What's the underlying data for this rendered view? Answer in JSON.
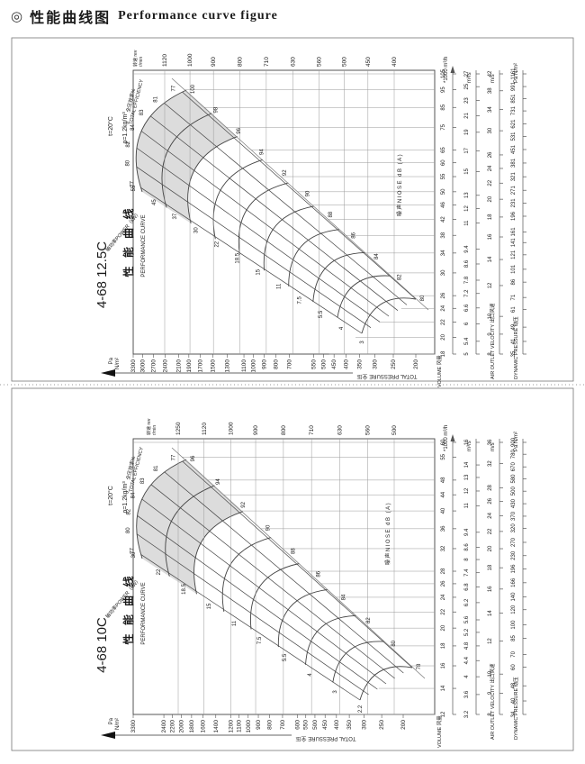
{
  "page": {
    "header_symbol": "◎",
    "header_zh": "性能曲线图",
    "header_en": "Performance curve figure"
  },
  "labels": {
    "rpm_header": "转速 rev r/min",
    "efficiency_axis_zh": "全压效率%",
    "efficiency_axis_en": "TOTAL EFFICIENCY",
    "noise_axis": "噪声NIOSE dB (A)",
    "power_axis": "轴功率POWER（kW）",
    "volume_axis": "VOLUME 风量",
    "outlet_axis": "AIR OUTLET VELOCITY 出口风速",
    "dynamic_axis": "DYNAMIC PRESSURE 动压",
    "total_pressure_axis": "TOTAL PRESSURE 全压",
    "pa_unit_line1": "Pa",
    "pa_unit_line2": "N/m²",
    "perf_title_zh": "性 能 曲 线",
    "perf_title_en": "PERFORMANCE CURVE",
    "condition_t": "t=20°C",
    "condition_rho": "ρ=1.2kg/m³",
    "col_headers": [
      "*1000 m³/h",
      "m³/s",
      "m/s",
      "Pa N/m²"
    ]
  },
  "chart_data": [
    {
      "type": "line",
      "title": "4-68 12.5C 性能曲线 PERFORMANCE CURVE",
      "model": "4-68 12.5C",
      "rpm": [
        1120,
        1000,
        900,
        800,
        710,
        630,
        560,
        500,
        450,
        400
      ],
      "volume_1000m3h": [
        105,
        95,
        85,
        75,
        65,
        60,
        55,
        50,
        46,
        42,
        38,
        34,
        30,
        26,
        24,
        22,
        20,
        18
      ],
      "flow_m3s": [
        27,
        25,
        23,
        21,
        19,
        17,
        15,
        13,
        12,
        11,
        9.4,
        8.6,
        7.8,
        7.2,
        6.6,
        6,
        5.4,
        5
      ],
      "outlet_velocity_ms": [
        42,
        38,
        34,
        30,
        26,
        24,
        22,
        20,
        18,
        16,
        14,
        12,
        10,
        9,
        8
      ],
      "dynamic_pressure_pa": [
        1161,
        991,
        851,
        731,
        621,
        531,
        451,
        381,
        321,
        271,
        231,
        196,
        161,
        141,
        121,
        101,
        86,
        71,
        61,
        49,
        41,
        35
      ],
      "total_pressure_pa": [
        3300,
        3000,
        2700,
        2400,
        2100,
        1900,
        1700,
        1500,
        1300,
        1100,
        1000,
        900,
        800,
        700,
        550,
        500,
        450,
        400,
        350,
        300,
        250,
        200
      ],
      "noise_db": [
        100,
        98,
        96,
        94,
        92,
        90,
        88,
        86,
        84,
        82,
        80
      ],
      "power_kw": [
        "55",
        "45",
        "37",
        "30",
        "22",
        "18.5",
        "15",
        "11",
        "7.5",
        "5.5",
        "4",
        "3"
      ],
      "efficiency_pct": [
        77,
        81,
        83,
        84,
        82,
        80,
        77
      ]
    },
    {
      "type": "line",
      "title": "4-68 10C 性能曲线 PERFORMANCE CURVE",
      "model": "4-68 10C",
      "rpm": [
        1250,
        1120,
        1000,
        900,
        800,
        710,
        630,
        560,
        500
      ],
      "volume_1000m3h": [
        60,
        55,
        48,
        44,
        40,
        36,
        32,
        28,
        26,
        24,
        22,
        20,
        18,
        16,
        14,
        12
      ],
      "flow_m3s": [
        16,
        14,
        13,
        12,
        11,
        9.4,
        8.6,
        8,
        7.4,
        6.8,
        6.2,
        5.6,
        5.2,
        4.8,
        4.4,
        4,
        3.6,
        3.2
      ],
      "outlet_velocity_ms": [
        36,
        32,
        28,
        26,
        24,
        22,
        20,
        18,
        16,
        14,
        12,
        10,
        9,
        8
      ],
      "dynamic_pressure_pa": [
        900,
        780,
        670,
        580,
        500,
        430,
        370,
        320,
        270,
        230,
        196,
        166,
        140,
        120,
        100,
        85,
        70,
        60,
        48,
        40,
        34
      ],
      "total_pressure_pa": [
        3300,
        2400,
        2200,
        2000,
        1800,
        1600,
        1400,
        1200,
        1100,
        1000,
        900,
        800,
        700,
        600,
        550,
        500,
        450,
        400,
        350,
        300,
        250,
        200
      ],
      "noise_db": [
        96,
        94,
        92,
        90,
        88,
        86,
        84,
        82,
        80,
        78
      ],
      "power_kw": [
        "30",
        "22",
        "18.5",
        "15",
        "11",
        "7.5",
        "5.5",
        "4",
        "3",
        "2.2"
      ],
      "efficiency_pct": [
        77,
        81,
        83,
        84,
        82,
        80,
        77
      ]
    }
  ]
}
